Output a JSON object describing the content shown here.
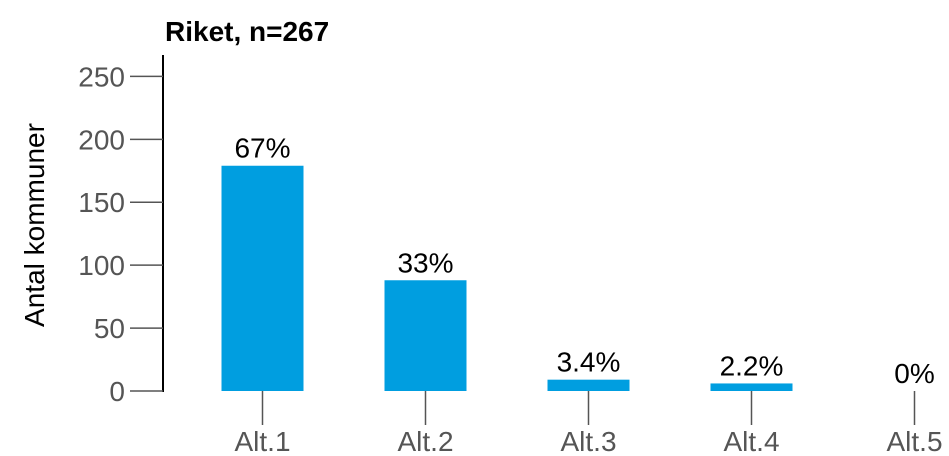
{
  "chart_data": {
    "type": "bar",
    "title": "Riket, n=267",
    "y_label": "Antal kommuner",
    "categories": [
      "Alt.1",
      "Alt.2",
      "Alt.3",
      "Alt.4",
      "Alt.5"
    ],
    "values": [
      179,
      88,
      9,
      6,
      0
    ],
    "value_labels": [
      "67%",
      "33%",
      "3.4%",
      "2.2%",
      "0%"
    ],
    "color": "#009ee0",
    "ylim": [
      0,
      267
    ],
    "yticks": [
      0,
      50,
      100,
      150,
      200,
      250
    ]
  }
}
